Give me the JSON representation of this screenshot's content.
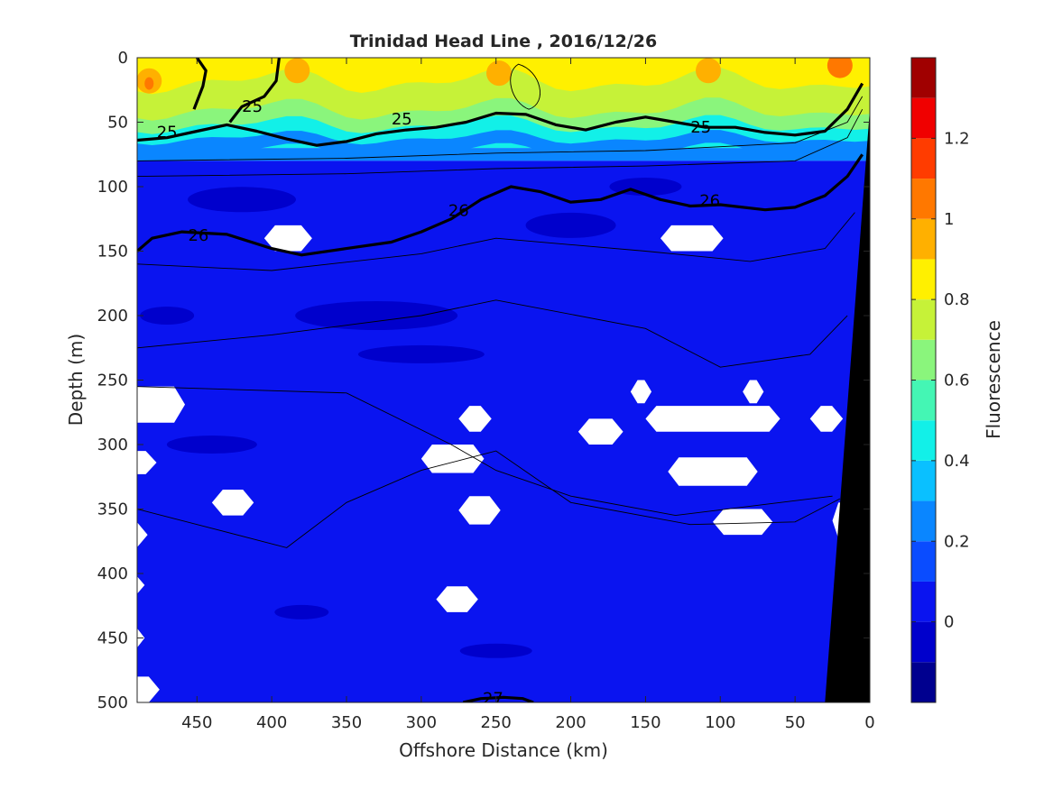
{
  "chart_data": {
    "type": "heatmap",
    "title": "Trinidad Head Line , 2016/12/26",
    "xlabel": "Offshore Distance (km)",
    "ylabel": "Depth (m)",
    "xlim": [
      490,
      0
    ],
    "ylim": [
      0,
      500
    ],
    "x_ticks": [
      "450",
      "400",
      "350",
      "300",
      "250",
      "200",
      "150",
      "100",
      "50",
      "0"
    ],
    "x_tick_values": [
      450,
      400,
      350,
      300,
      250,
      200,
      150,
      100,
      50,
      0
    ],
    "y_ticks": [
      "0",
      "50",
      "100",
      "150",
      "200",
      "250",
      "300",
      "350",
      "400",
      "450",
      "500"
    ],
    "y_tick_values": [
      0,
      50,
      100,
      150,
      200,
      250,
      300,
      350,
      400,
      450,
      500
    ],
    "colorbar": {
      "label": "Fluorescence",
      "range": [
        -0.2,
        1.4
      ],
      "tick_labels": [
        "0",
        "0.2",
        "0.4",
        "0.6",
        "0.8",
        "1",
        "1.2"
      ],
      "tick_values": [
        0,
        0.2,
        0.4,
        0.6,
        0.8,
        1.0,
        1.2
      ],
      "levels": [
        -0.2,
        -0.1,
        0.0,
        0.1,
        0.2,
        0.3,
        0.4,
        0.5,
        0.6,
        0.7,
        0.8,
        0.9,
        1.0,
        1.1,
        1.2,
        1.3,
        1.4
      ],
      "colors": [
        "#00008f",
        "#0000cc",
        "#0a14f0",
        "#0a4cff",
        "#0a86ff",
        "#0ac0ff",
        "#12f0e8",
        "#44f6b4",
        "#8af57c",
        "#c6f238",
        "#fff000",
        "#ffb000",
        "#ff7800",
        "#ff3c00",
        "#f00000",
        "#a00000"
      ]
    },
    "fluorescence_layers": [
      {
        "depth": 0,
        "value": 0.8
      },
      {
        "depth": 30,
        "value": 0.75
      },
      {
        "depth": 55,
        "value": 0.4
      },
      {
        "depth": 70,
        "value": 0.2
      },
      {
        "depth": 80,
        "value": 0.08
      },
      {
        "depth": 500,
        "value": 0.05
      }
    ],
    "density_contours": [
      {
        "label": "25",
        "bold": true,
        "label_positions": [
          [
            470,
            57
          ],
          [
            413,
            37
          ],
          [
            313,
            47
          ],
          [
            113,
            53
          ]
        ],
        "x": [
          490,
          470,
          450,
          430,
          410,
          390,
          370,
          350,
          330,
          310,
          290,
          270,
          250,
          230,
          210,
          190,
          170,
          150,
          130,
          110,
          90,
          70,
          50,
          30,
          15,
          5
        ],
        "y": [
          64,
          62,
          57,
          52,
          57,
          63,
          68,
          65,
          59,
          56,
          54,
          50,
          43,
          44,
          52,
          56,
          50,
          46,
          50,
          54,
          54,
          58,
          60,
          57,
          40,
          20
        ]
      },
      {
        "label": "25",
        "bold": true,
        "label_positions": [],
        "x": [
          452,
          446,
          444,
          450
        ],
        "y": [
          40,
          22,
          10,
          0
        ]
      },
      {
        "label": "25",
        "bold": true,
        "label_positions": [],
        "x": [
          428,
          420,
          405,
          397,
          395
        ],
        "y": [
          50,
          38,
          30,
          18,
          0
        ]
      },
      {
        "label": "26",
        "bold": true,
        "label_positions": [
          [
            449,
            137
          ],
          [
            275,
            118
          ],
          [
            107,
            110
          ]
        ],
        "x": [
          490,
          480,
          460,
          430,
          400,
          380,
          350,
          320,
          300,
          280,
          260,
          240,
          220,
          200,
          180,
          160,
          140,
          120,
          100,
          70,
          50,
          30,
          15,
          5
        ],
        "y": [
          150,
          140,
          135,
          137,
          148,
          153,
          148,
          143,
          135,
          125,
          110,
          100,
          104,
          112,
          110,
          102,
          110,
          115,
          114,
          118,
          116,
          107,
          92,
          75
        ]
      },
      {
        "label": "27",
        "bold": true,
        "label_positions": [
          [
            252,
            496
          ]
        ],
        "x": [
          272,
          260,
          245,
          232,
          225
        ],
        "y": [
          500,
          497,
          496,
          497,
          500
        ]
      }
    ],
    "missing_data_regions": [
      [
        395,
        130,
        108,
        42
      ],
      [
        470,
        490,
        260,
        275,
        490,
        330
      ],
      [
        250,
        500,
        290,
        350,
        490,
        310
      ],
      [
        340,
        290,
        385,
        440
      ]
    ],
    "bathymetry_color": "#000000"
  }
}
